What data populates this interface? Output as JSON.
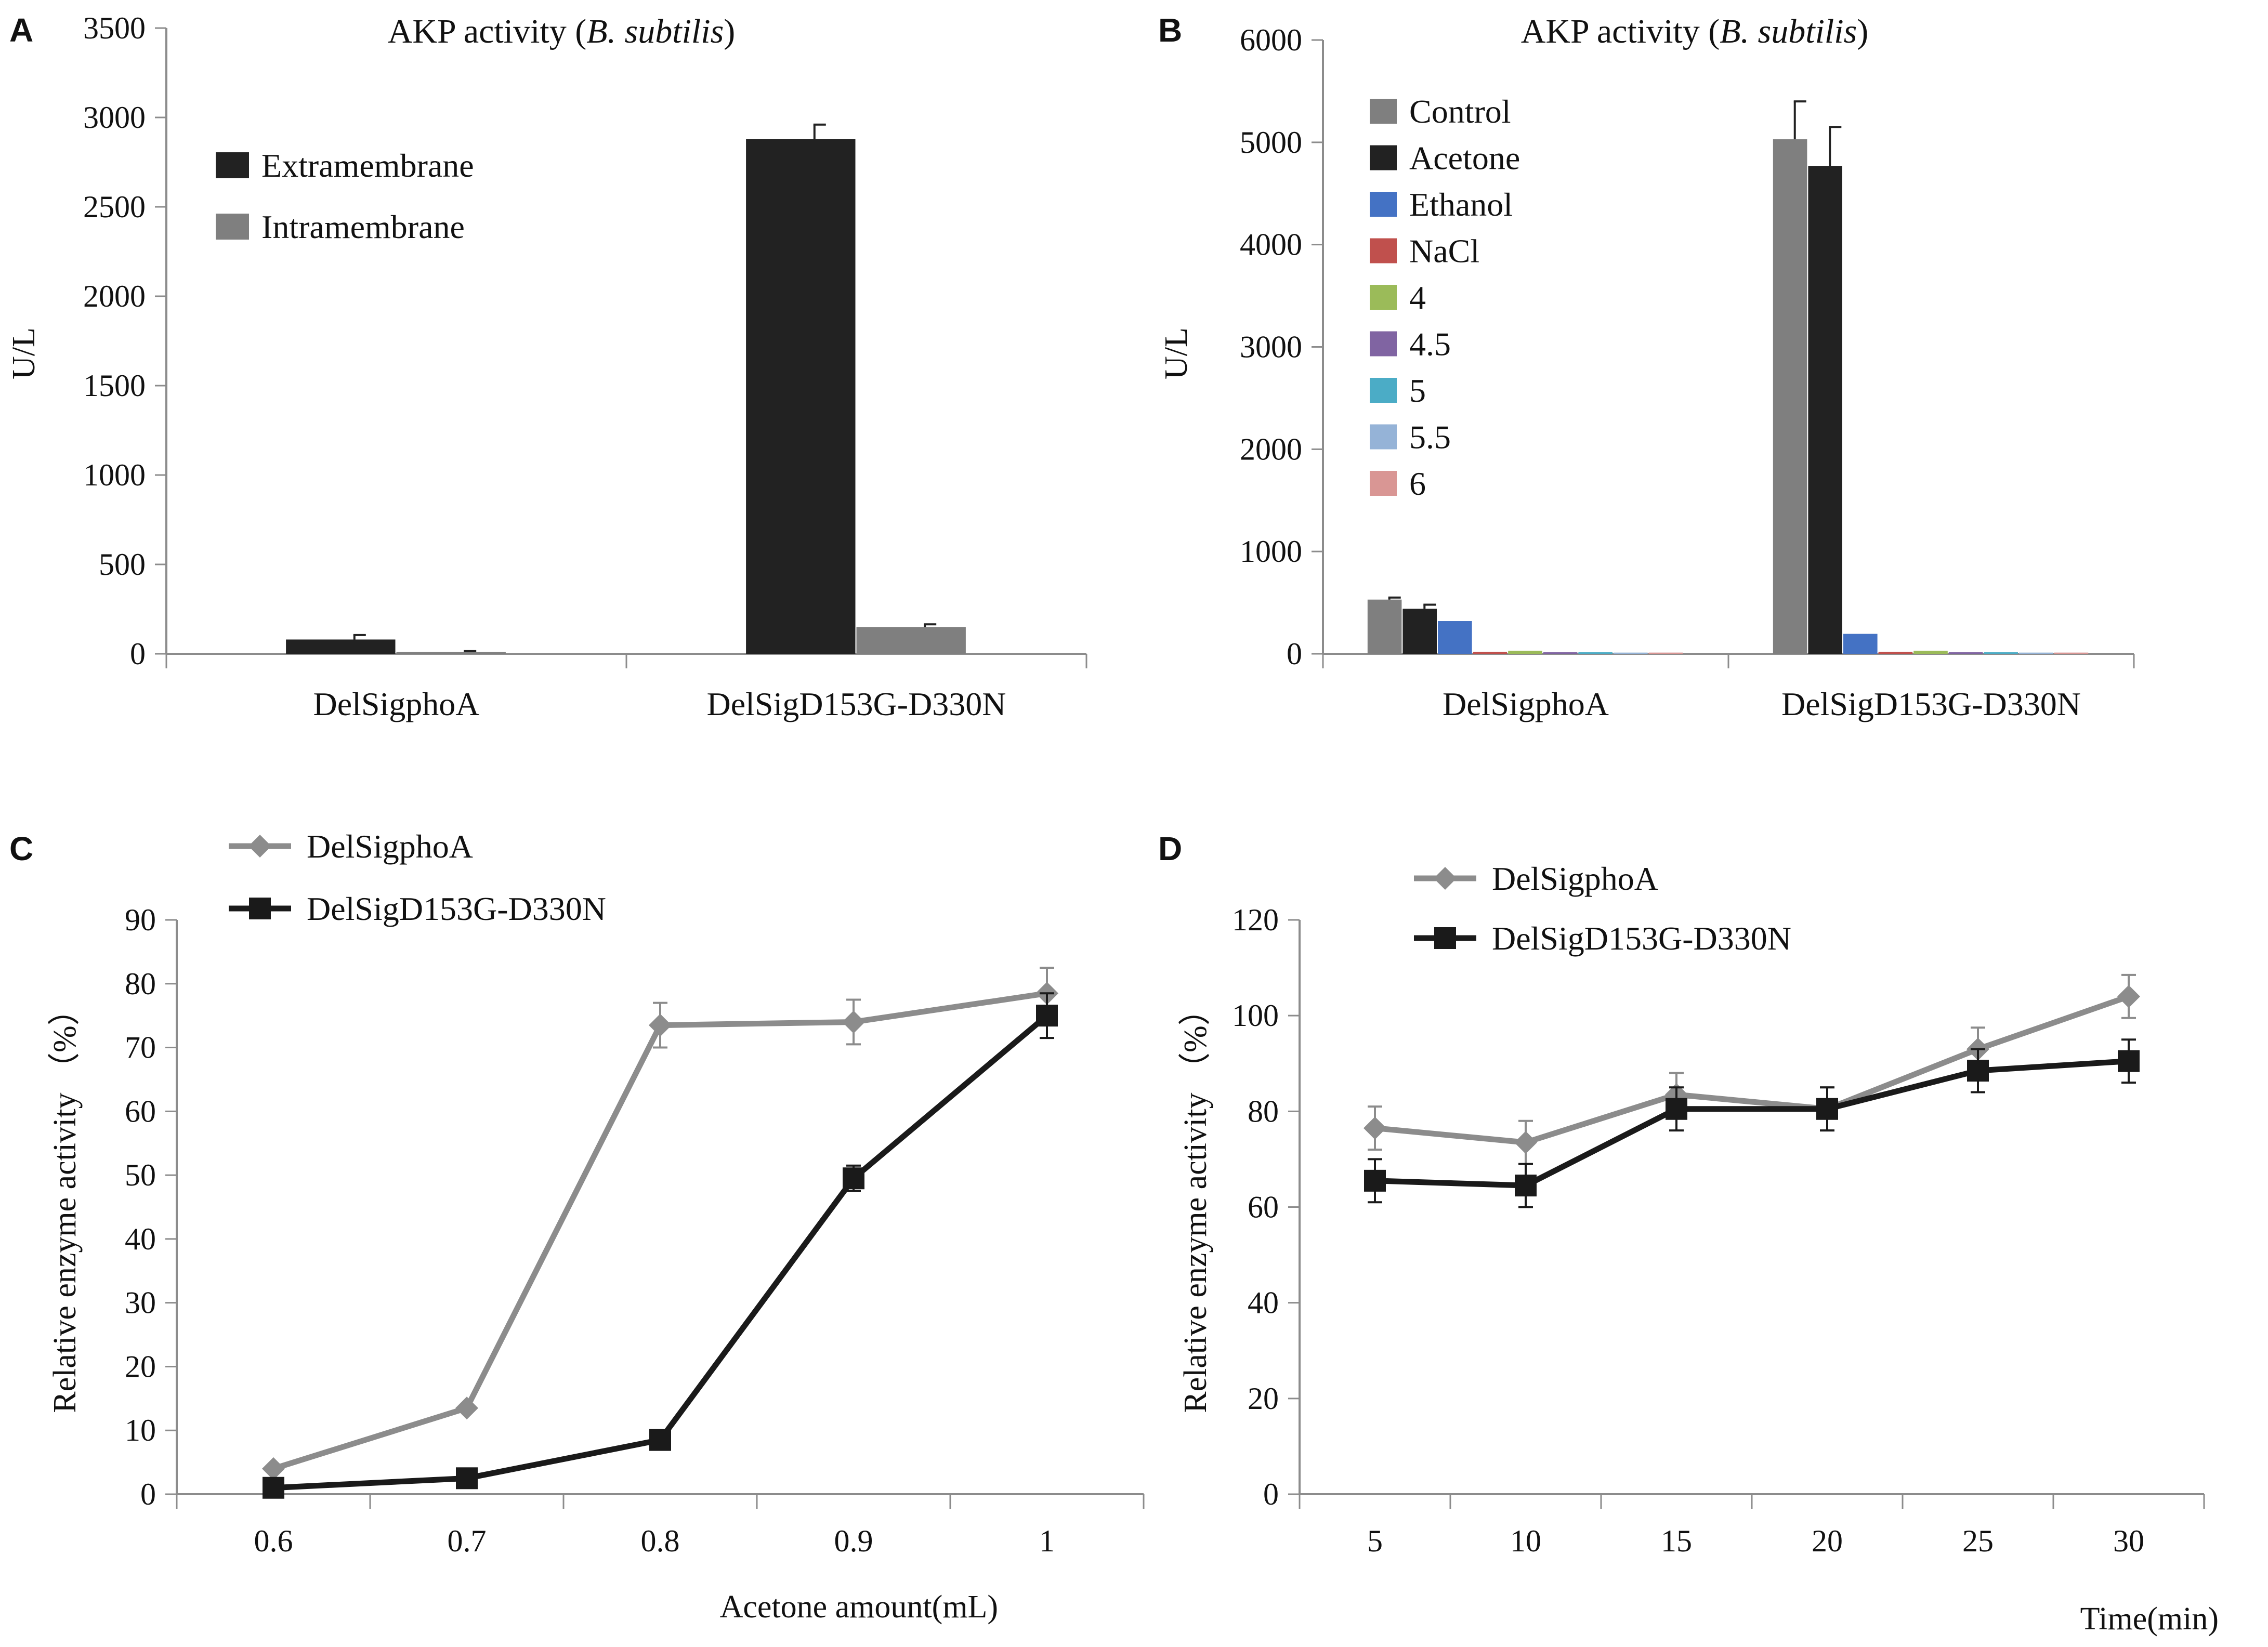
{
  "chart_data": [
    {
      "id": "A",
      "panel": "A",
      "type": "bar",
      "title_main": "AKP activity (",
      "title_italic": "B. subtilis",
      "title_end": ")",
      "ylabel": "U/L",
      "xlabel": "",
      "ylim": [
        0,
        3500
      ],
      "yticks": [
        0,
        500,
        1000,
        1500,
        2000,
        2500,
        3000,
        3500
      ],
      "categories": [
        "DelSigphoA",
        "DelSigD153G-D330N"
      ],
      "legend_position": "top-left",
      "series": [
        {
          "name": "Extramembrane",
          "color": "#222222",
          "values": [
            80,
            2880
          ],
          "errors": [
            25,
            80
          ]
        },
        {
          "name": "Intramembrane",
          "color": "#7f7f7f",
          "values": [
            10,
            150
          ],
          "errors": [
            5,
            15
          ]
        }
      ]
    },
    {
      "id": "B",
      "panel": "B",
      "type": "bar",
      "title_main": "AKP activity (",
      "title_italic": "B. subtilis",
      "title_end": ")",
      "ylabel": "U/L",
      "xlabel": "",
      "ylim": [
        0,
        6000
      ],
      "yticks": [
        0,
        1000,
        2000,
        3000,
        4000,
        5000,
        6000
      ],
      "categories": [
        "DelSigphoA",
        "DelSigD153G-D330N"
      ],
      "legend_position": "top-left",
      "series": [
        {
          "name": "Control",
          "color": "#7f7f7f",
          "values": [
            530,
            5030
          ],
          "errors": [
            20,
            370
          ]
        },
        {
          "name": "Acetone",
          "color": "#222222",
          "values": [
            440,
            4770
          ],
          "errors": [
            40,
            380
          ]
        },
        {
          "name": "Ethanol",
          "color": "#4472c4",
          "values": [
            320,
            195
          ],
          "errors": [
            0,
            0
          ]
        },
        {
          "name": "NaCl",
          "color": "#c0504d",
          "values": [
            20,
            20
          ],
          "errors": [
            0,
            0
          ]
        },
        {
          "name": "4",
          "color": "#9bbb59",
          "values": [
            30,
            30
          ],
          "errors": [
            0,
            0
          ]
        },
        {
          "name": "4.5",
          "color": "#8064a2",
          "values": [
            15,
            15
          ],
          "errors": [
            0,
            0
          ]
        },
        {
          "name": "5",
          "color": "#4bacc6",
          "values": [
            15,
            15
          ],
          "errors": [
            0,
            0
          ]
        },
        {
          "name": "5.5",
          "color": "#95b3d7",
          "values": [
            12,
            12
          ],
          "errors": [
            0,
            0
          ]
        },
        {
          "name": "6",
          "color": "#d99694",
          "values": [
            12,
            12
          ],
          "errors": [
            0,
            0
          ]
        }
      ]
    },
    {
      "id": "C",
      "panel": "C",
      "type": "line",
      "title_main": "",
      "ylabel": "Relative enzyme activity （%）",
      "xlabel": "Acetone amount(mL)",
      "ylim": [
        0,
        90
      ],
      "yticks": [
        0,
        10,
        20,
        30,
        40,
        50,
        60,
        70,
        80,
        90
      ],
      "x": [
        "0.6",
        "0.7",
        "0.8",
        "0.9",
        "1"
      ],
      "legend_position": "top-left",
      "series": [
        {
          "name": "DelSigphoA",
          "color": "#8c8c8c",
          "marker": "diamond",
          "values": [
            4,
            13.5,
            73.5,
            74,
            78.5
          ],
          "errors": [
            0,
            0,
            3.5,
            3.5,
            4
          ]
        },
        {
          "name": "DelSigD153G-D330N",
          "color": "#1a1a1a",
          "marker": "square",
          "values": [
            1,
            2.5,
            8.5,
            49.5,
            75
          ],
          "errors": [
            0,
            0,
            0,
            2,
            3.5
          ]
        }
      ]
    },
    {
      "id": "D",
      "panel": "D",
      "type": "line",
      "title_main": "",
      "ylabel": "Relative enzyme activity （%）",
      "xlabel": "Time(min)",
      "ylim": [
        0,
        120
      ],
      "yticks": [
        0,
        20,
        40,
        60,
        80,
        100,
        120
      ],
      "x": [
        "5",
        "10",
        "15",
        "20",
        "25",
        "30"
      ],
      "legend_position": "top-left",
      "series": [
        {
          "name": "DelSigphoA",
          "color": "#8c8c8c",
          "marker": "diamond",
          "values": [
            76.5,
            73.5,
            83.5,
            80.5,
            93,
            104
          ],
          "errors": [
            4.5,
            4.5,
            4.5,
            4.5,
            4.5,
            4.5
          ]
        },
        {
          "name": "DelSigD153G-D330N",
          "color": "#1a1a1a",
          "marker": "square",
          "values": [
            65.5,
            64.5,
            80.5,
            80.5,
            88.5,
            90.5
          ],
          "errors": [
            4.5,
            4.5,
            4.5,
            4.5,
            4.5,
            4.5
          ]
        }
      ]
    }
  ]
}
